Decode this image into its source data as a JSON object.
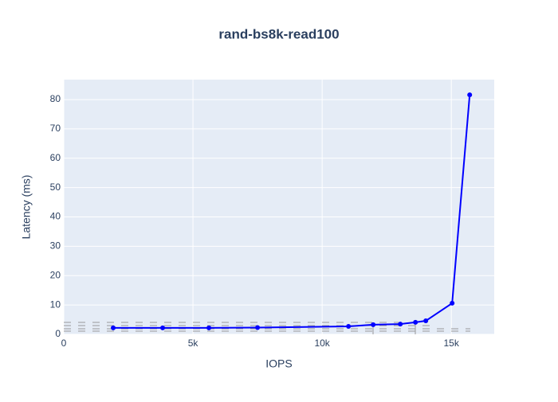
{
  "chart_data": {
    "type": "line",
    "title": "rand-bs8k-read100",
    "x_label": "IOPS",
    "y_label": "Latency (ms)",
    "series": [
      {
        "name": "rand-bs8k-read100",
        "color": "#0000ff",
        "x": [
          1914,
          3827,
          5617,
          7500,
          11019,
          11975,
          13025,
          13611,
          14012,
          15031,
          15710
        ],
        "values": [
          2.2,
          2.2,
          2.2,
          2.3,
          2.7,
          3.3,
          3.5,
          4.1,
          4.6,
          10.6,
          81.6
        ]
      }
    ],
    "xlim": [
      0,
      16660
    ],
    "ylim": [
      0,
      86.8
    ],
    "xticks": [
      0,
      {
        "value": 5000,
        "label": "5k"
      },
      {
        "value": 10000,
        "label": "10k"
      },
      {
        "value": 15000,
        "label": "15k"
      }
    ],
    "yticks": [
      0,
      10,
      20,
      30,
      40,
      50,
      60,
      70,
      80
    ],
    "grid": true
  }
}
